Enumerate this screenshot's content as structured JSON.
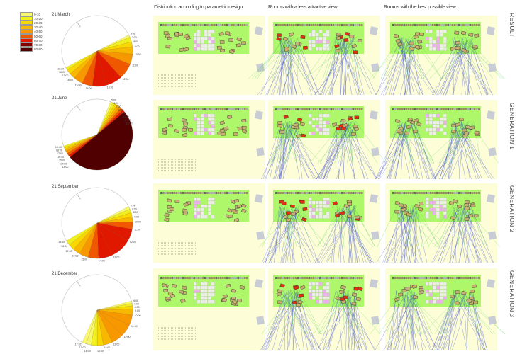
{
  "legend": {
    "items": [
      {
        "label": "0-10",
        "color": "#f8f870"
      },
      {
        "label": "10-20",
        "color": "#f0f020"
      },
      {
        "label": "20-30",
        "color": "#f8d800"
      },
      {
        "label": "30-40",
        "color": "#f8b800"
      },
      {
        "label": "40-50",
        "color": "#f89800"
      },
      {
        "label": "50-60",
        "color": "#f05800"
      },
      {
        "label": "60-70",
        "color": "#e01800"
      },
      {
        "label": "70-80",
        "color": "#800000"
      },
      {
        "label": "80-90",
        "color": "#500000"
      }
    ]
  },
  "column_headers": [
    "Distribution according to parametric design",
    "Rooms with a less attractive view",
    "Rooms with the best possible view"
  ],
  "row_labels": [
    "RESULT",
    "GENERATION 1",
    "GENERATION 2",
    "GENERATION 3"
  ],
  "sun_diagrams": [
    {
      "title": "21 March",
      "start": 63,
      "start_label": "6:20",
      "slices": [
        {
          "to": 67,
          "band": 0,
          "label": "7:00"
        },
        {
          "to": 75,
          "band": 1,
          "label": "8:00"
        },
        {
          "to": 83,
          "band": 2,
          "label": "9:00"
        },
        {
          "to": 95,
          "band": 3,
          "label": "10:00"
        },
        {
          "to": 112,
          "band": 4,
          "label": "11:00"
        },
        {
          "to": 138,
          "band": 5,
          "label": "12:00"
        },
        {
          "to": 165,
          "band": 6,
          "label": "13:00"
        },
        {
          "to": 188,
          "band": 6,
          "label": "14:00"
        },
        {
          "to": 205,
          "band": 5,
          "label": "15:00"
        },
        {
          "to": 220,
          "band": 4,
          "label": "16:00"
        },
        {
          "to": 230,
          "band": 3,
          "label": "17:00"
        },
        {
          "to": 238,
          "band": 2,
          "label": "18:00"
        },
        {
          "to": 242,
          "band": 1,
          "label": "18:20"
        }
      ]
    },
    {
      "title": "21 June",
      "start": 22,
      "start_label": "5:00",
      "slices": [
        {
          "to": 26,
          "band": 0,
          "label": "6:00"
        },
        {
          "to": 30,
          "band": 1,
          "label": "7:00"
        },
        {
          "to": 34,
          "band": 2,
          "label": "8:00"
        },
        {
          "to": 38,
          "band": 3,
          "label": "9:00"
        },
        {
          "to": 42,
          "band": 4,
          "label": "10:00"
        },
        {
          "to": 46,
          "band": 5,
          "label": "11:00"
        },
        {
          "to": 50,
          "band": 6,
          "label": "12:00"
        },
        {
          "to": 230,
          "band": 8,
          "label": "13:00"
        },
        {
          "to": 234,
          "band": 6,
          "label": "14:00"
        },
        {
          "to": 238,
          "band": 5,
          "label": "15:00"
        },
        {
          "to": 242,
          "band": 4,
          "label": "16:00"
        },
        {
          "to": 245,
          "band": 3,
          "label": "17:00"
        },
        {
          "to": 248,
          "band": 2,
          "label": "18:00"
        },
        {
          "to": 251,
          "band": 1,
          "label": "19:40"
        }
      ]
    },
    {
      "title": "21 September",
      "start": 62,
      "start_label": "6:08",
      "slices": [
        {
          "to": 67,
          "band": 0,
          "label": "7:00"
        },
        {
          "to": 73,
          "band": 1,
          "label": "8:00"
        },
        {
          "to": 80,
          "band": 2,
          "label": "9:00"
        },
        {
          "to": 88,
          "band": 3,
          "label": "10:00"
        },
        {
          "to": 100,
          "band": 5,
          "label": "11:00"
        },
        {
          "to": 120,
          "band": 6,
          "label": "12:00"
        },
        {
          "to": 155,
          "band": 6,
          "label": "13:00"
        },
        {
          "to": 178,
          "band": 6,
          "label": "14:00"
        },
        {
          "to": 195,
          "band": 5,
          "label": "15:00"
        },
        {
          "to": 210,
          "band": 4,
          "label": "16:00"
        },
        {
          "to": 222,
          "band": 3,
          "label": "17:00"
        },
        {
          "to": 232,
          "band": 2,
          "label": "18:00"
        },
        {
          "to": 240,
          "band": 1,
          "label": "18:10"
        }
      ]
    },
    {
      "title": "21 December",
      "start": 75,
      "start_label": "6:08",
      "slices": [
        {
          "to": 79,
          "band": 0,
          "label": "7:00"
        },
        {
          "to": 83,
          "band": 1,
          "label": "8:00"
        },
        {
          "to": 88,
          "band": 2,
          "label": "9:00"
        },
        {
          "to": 98,
          "band": 3,
          "label": "10:00"
        },
        {
          "to": 115,
          "band": 4,
          "label": "11:00"
        },
        {
          "to": 135,
          "band": 4,
          "label": "12:00"
        },
        {
          "to": 155,
          "band": 4,
          "label": "13:00"
        },
        {
          "to": 170,
          "band": 3,
          "label": "14:00"
        },
        {
          "to": 180,
          "band": 2,
          "label": "15:00"
        },
        {
          "to": 190,
          "band": 1,
          "label": "16:00"
        },
        {
          "to": 198,
          "band": 0,
          "label": "17:00"
        },
        {
          "to": 205,
          "band": 0,
          "label": "17:42"
        }
      ]
    }
  ],
  "colors": {
    "panel_bg": "#fdfdd8",
    "site_green": "#aef76a",
    "room_block": "#c8b070",
    "bad_room": "#e03010",
    "view_lines_blue": "#3040d0",
    "view_lines_green": "#40d040",
    "pink_cells": "#f0b0f0"
  }
}
